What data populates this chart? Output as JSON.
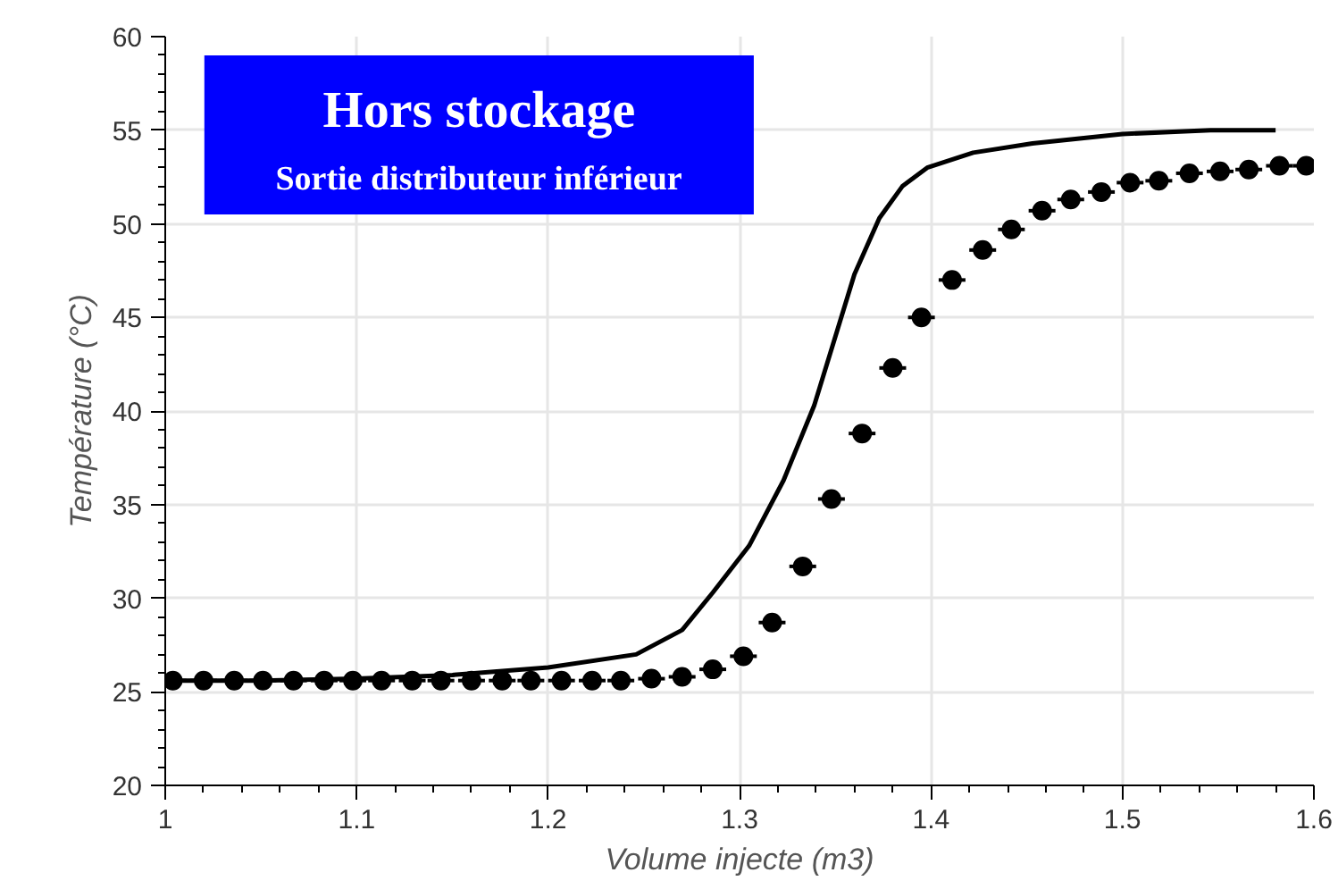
{
  "chart_data": {
    "type": "scatter",
    "title": "Hors stockage",
    "subtitle": "Sortie distributeur inférieur",
    "xlabel": "Volume injecte (m3)",
    "ylabel": "Température (°C)",
    "xlim": [
      1,
      1.6
    ],
    "xticks": [
      1,
      1.1,
      1.2,
      1.3,
      1.4,
      1.5,
      1.6
    ],
    "ylim": [
      20,
      60
    ],
    "yticks": [
      20,
      25,
      30,
      35,
      40,
      45,
      50,
      55,
      60
    ],
    "grid": true,
    "series": [
      {
        "type": "line",
        "color": "#000000",
        "line_style": "solid",
        "marker": "none",
        "x": [
          1.0,
          1.05,
          1.1,
          1.15,
          1.2,
          1.246,
          1.27,
          1.286,
          1.305,
          1.323,
          1.339,
          1.351,
          1.36,
          1.373,
          1.385,
          1.398,
          1.422,
          1.453,
          1.5,
          1.546,
          1.58
        ],
        "values": [
          25.6,
          25.6,
          25.7,
          25.9,
          26.3,
          27.0,
          28.3,
          30.3,
          32.8,
          36.3,
          40.3,
          44.3,
          47.3,
          50.3,
          52.0,
          53.0,
          53.8,
          54.3,
          54.8,
          55.0,
          55.0
        ]
      },
      {
        "color": "#000000",
        "marker": "circle",
        "x": [
          1.004,
          1.02,
          1.036,
          1.051,
          1.067,
          1.083,
          1.098,
          1.113,
          1.129,
          1.144,
          1.16,
          1.176,
          1.191,
          1.207,
          1.223,
          1.238,
          1.254,
          1.27,
          1.286,
          1.302,
          1.317,
          1.333,
          1.348,
          1.364,
          1.38,
          1.395,
          1.411,
          1.427,
          1.442,
          1.458,
          1.473,
          1.489,
          1.504,
          1.519,
          1.535,
          1.551,
          1.566,
          1.582,
          1.596
        ],
        "values": [
          25.6,
          25.6,
          25.6,
          25.6,
          25.6,
          25.6,
          25.6,
          25.6,
          25.6,
          25.6,
          25.6,
          25.6,
          25.6,
          25.6,
          25.6,
          25.6,
          25.7,
          25.8,
          26.2,
          26.9,
          28.7,
          31.7,
          35.3,
          38.8,
          42.3,
          45.0,
          47.0,
          48.6,
          49.7,
          50.7,
          51.3,
          51.7,
          52.2,
          52.3,
          52.7,
          52.8,
          52.9,
          53.1,
          53.1
        ],
        "xerrors": [
          0.007,
          0.007,
          0.007,
          0.007,
          0.007,
          0.007,
          0.007,
          0.007,
          0.007,
          0.007,
          0.007,
          0.007,
          0.007,
          0.007,
          0.007,
          0.007,
          0.007,
          0.007,
          0.007,
          0.007,
          0.007,
          0.007,
          0.007,
          0.007,
          0.007,
          0.007,
          0.007,
          0.007,
          0.007,
          0.007,
          0.007,
          0.007,
          0.007,
          0.007,
          0.007,
          0.007,
          0.007,
          0.007,
          0.007
        ]
      }
    ]
  }
}
